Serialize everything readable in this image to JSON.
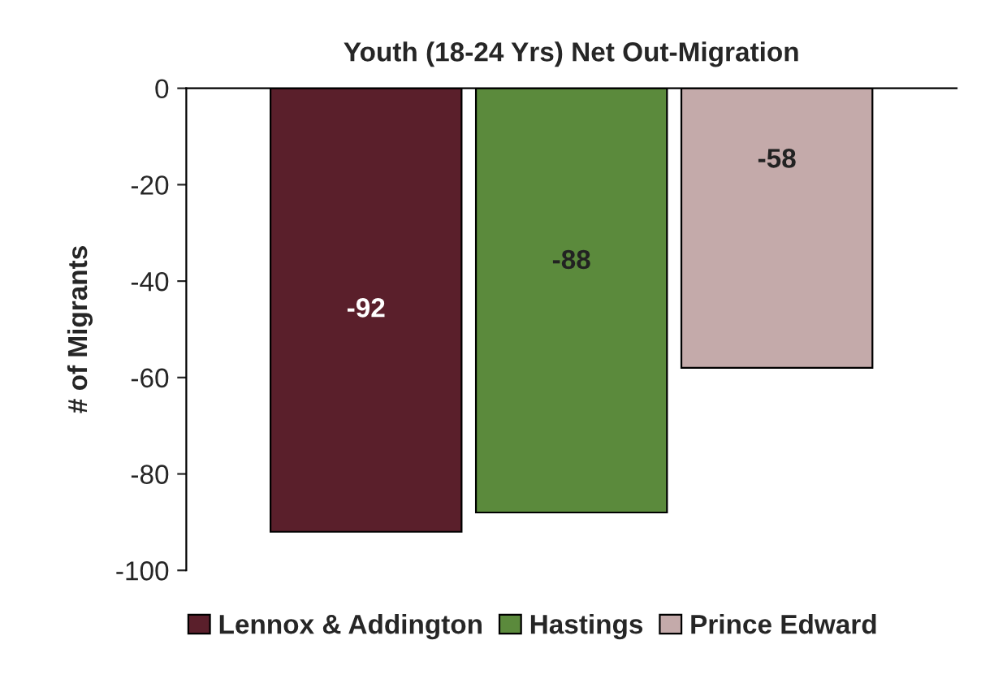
{
  "chart_data": {
    "type": "bar",
    "title": "Youth (18-24 Yrs) Net Out-Migration",
    "ylabel": "# of Migrants",
    "categories": [
      null
    ],
    "series": [
      {
        "name": "Lennox & Addington",
        "color": "#5a1f2b",
        "values": [
          -92
        ]
      },
      {
        "name": "Hastings",
        "color": "#5b8a3c",
        "values": [
          -88
        ]
      },
      {
        "name": "Prince Edward",
        "color": "#c4aaaa",
        "values": [
          -58
        ]
      }
    ],
    "ylim": [
      -100,
      0
    ],
    "yticks": [
      0,
      -20,
      -40,
      -60,
      -80,
      -100
    ],
    "data_labels": true,
    "legend": "bottom",
    "grid": false
  }
}
